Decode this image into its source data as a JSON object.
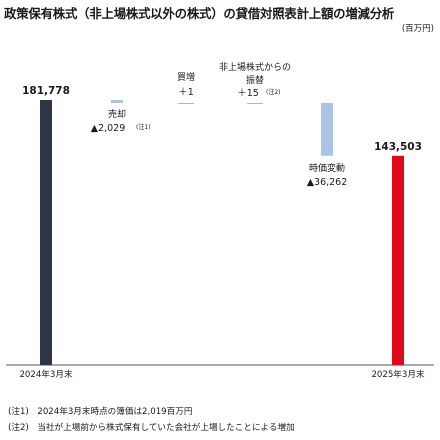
{
  "title": "政策保有株式（非上場株式以外の株式）の貸借対照表計上額の増減分析",
  "unit": "(百万円)",
  "chart_data": {
    "type": "waterfall",
    "title": "政策保有株式（非上場株式以外の株式）の貸借対照表計上額の増減分析",
    "unit": "百万円",
    "steps": [
      {
        "key": "start",
        "kind": "total",
        "value": 181778,
        "label": "181,778",
        "category": "2024年3月末",
        "color": "#2e3645"
      },
      {
        "key": "sale",
        "kind": "delta",
        "value": -2029,
        "caption": "売却",
        "label": "▲2,029",
        "note": "(注1)",
        "color": "#a9c4e4"
      },
      {
        "key": "buy",
        "kind": "delta",
        "value": 1,
        "caption": "買増",
        "label": "＋1",
        "color": "#f0a070"
      },
      {
        "key": "transfer",
        "kind": "delta",
        "value": 15,
        "caption": "非上場株式からの振替",
        "caption_lines": [
          "非上場株式からの",
          "振替"
        ],
        "label": "＋15",
        "note": "(注2)",
        "color": "#f0a070"
      },
      {
        "key": "market",
        "kind": "delta",
        "value": -36262,
        "caption": "時価変動",
        "label": "▲36,262",
        "color": "#a9c4e4"
      },
      {
        "key": "end",
        "kind": "total",
        "value": 143503,
        "label": "143,503",
        "category": "2025年3月末",
        "color": "#e0091b"
      }
    ]
  },
  "notes": [
    "(注1)　2024年3月末時点の簿価は2,019百万円",
    "(注2)　当社が上場前から株式保有していた会社が上場したことによる増加"
  ]
}
